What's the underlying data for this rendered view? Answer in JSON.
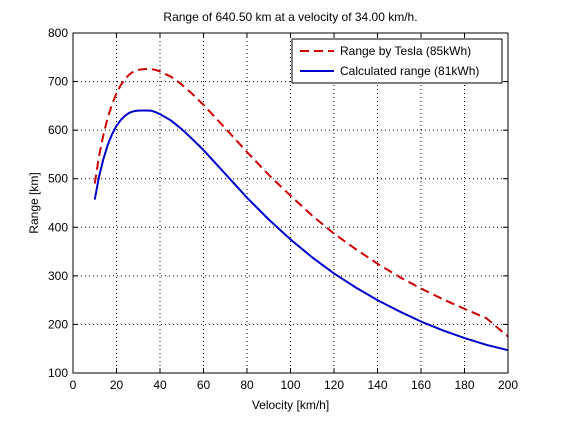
{
  "chart_data": {
    "type": "line",
    "title": "Range of 640.50 km at a velocity of 34.00 km/h.",
    "xlabel": "Velocity [km/h]",
    "ylabel": "Range [km]",
    "xlim": [
      0,
      200
    ],
    "ylim": [
      100,
      800
    ],
    "xticks": [
      0,
      20,
      40,
      60,
      80,
      100,
      120,
      140,
      160,
      180,
      200
    ],
    "yticks": [
      100,
      200,
      300,
      400,
      500,
      600,
      700,
      800
    ],
    "grid": true,
    "grid_style": "dotted",
    "legend_position": "top-right",
    "series": [
      {
        "name": "Range by Tesla (85kWh)",
        "color": "#cc0000",
        "style": "dashed",
        "x": [
          10,
          12,
          14,
          16,
          18,
          20,
          22,
          24,
          26,
          28,
          30,
          32,
          34,
          36,
          38,
          40,
          45,
          50,
          55,
          60,
          70,
          80,
          90,
          100,
          110,
          120,
          130,
          140,
          150,
          160,
          170,
          180,
          190,
          200
        ],
        "y": [
          490,
          547,
          591,
          626,
          654,
          676,
          693,
          706,
          715,
          721,
          724,
          725.5,
          726,
          725.5,
          724,
          721,
          710,
          694,
          674,
          652,
          604,
          555,
          508,
          465,
          424,
          387,
          355,
          325,
          298,
          274,
          252,
          232,
          213,
          175
        ]
      },
      {
        "name": "Calculated range (81kWh)",
        "color": "#0000cc",
        "style": "solid",
        "x": [
          10,
          12,
          14,
          16,
          18,
          20,
          22,
          24,
          26,
          28,
          30,
          32,
          34,
          36,
          38,
          40,
          45,
          50,
          55,
          60,
          70,
          80,
          90,
          100,
          110,
          120,
          130,
          140,
          150,
          160,
          170,
          180,
          190,
          200
        ],
        "y": [
          457,
          505,
          541,
          570,
          592,
          609,
          621,
          630,
          636,
          639,
          640.3,
          640.5,
          640.5,
          640,
          637,
          633,
          620,
          602,
          581,
          559,
          510,
          461,
          416,
          375,
          338,
          305,
          276,
          250,
          227,
          206,
          188,
          172,
          158,
          147
        ]
      }
    ]
  }
}
